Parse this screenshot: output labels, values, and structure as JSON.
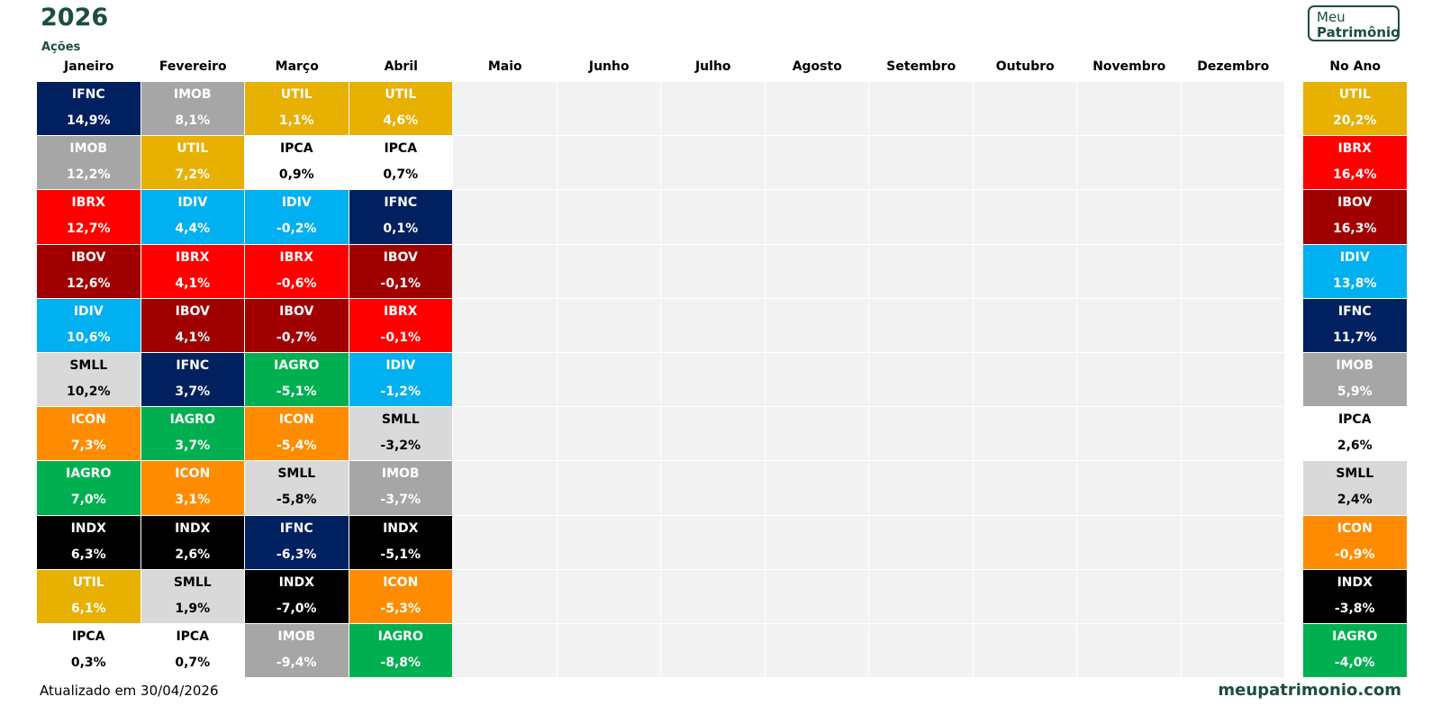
{
  "title": "2026",
  "subtitle": "Ações",
  "logo": [
    "Meu",
    "Patrimônio"
  ],
  "columns": [
    {
      "header": "Janeiro",
      "cells": [
        [
          "IFNC",
          "14,9%"
        ],
        [
          "IMOB",
          "12,2%"
        ],
        [
          "IBRX",
          "12,7%"
        ],
        [
          "IBOV",
          "12,6%"
        ],
        [
          "IDIV",
          "10,6%"
        ],
        [
          "SMLL",
          "10,2%"
        ],
        [
          "ICON",
          "7,3%"
        ],
        [
          "IAGRO",
          "7,0%"
        ],
        [
          "INDX",
          "6,3%"
        ],
        [
          "UTIL",
          "6,1%"
        ],
        [
          "IPCA",
          "0,3%"
        ]
      ]
    },
    {
      "header": "Fevereiro",
      "cells": [
        [
          "IMOB",
          "8,1%"
        ],
        [
          "UTIL",
          "7,2%"
        ],
        [
          "IDIV",
          "4,4%"
        ],
        [
          "IBRX",
          "4,1%"
        ],
        [
          "IBOV",
          "4,1%"
        ],
        [
          "IFNC",
          "3,7%"
        ],
        [
          "IAGRO",
          "3,7%"
        ],
        [
          "ICON",
          "3,1%"
        ],
        [
          "INDX",
          "2,6%"
        ],
        [
          "SMLL",
          "1,9%"
        ],
        [
          "IPCA",
          "0,7%"
        ]
      ]
    },
    {
      "header": "Março",
      "cells": [
        [
          "UTIL",
          "1,1%"
        ],
        [
          "IPCA",
          "0,9%"
        ],
        [
          "IDIV",
          "-0,2%"
        ],
        [
          "IBRX",
          "-0,6%"
        ],
        [
          "IBOV",
          "-0,7%"
        ],
        [
          "IAGRO",
          "-5,1%"
        ],
        [
          "ICON",
          "-5,4%"
        ],
        [
          "SMLL",
          "-5,8%"
        ],
        [
          "IFNC",
          "-6,3%"
        ],
        [
          "INDX",
          "-7,0%"
        ],
        [
          "IMOB",
          "-9,4%"
        ]
      ]
    },
    {
      "header": "Abril",
      "cells": [
        [
          "UTIL",
          "4,6%"
        ],
        [
          "IPCA",
          "0,7%"
        ],
        [
          "IFNC",
          "0,1%"
        ],
        [
          "IBOV",
          "-0,1%"
        ],
        [
          "IBRX",
          "-0,1%"
        ],
        [
          "IDIV",
          "-1,2%"
        ],
        [
          "SMLL",
          "-3,2%"
        ],
        [
          "IMOB",
          "-3,7%"
        ],
        [
          "INDX",
          "-5,1%"
        ],
        [
          "ICON",
          "-5,3%"
        ],
        [
          "IAGRO",
          "-8,8%"
        ]
      ]
    },
    {
      "header": "Maio",
      "cells": []
    },
    {
      "header": "Junho",
      "cells": []
    },
    {
      "header": "Julho",
      "cells": []
    },
    {
      "header": "Agosto",
      "cells": []
    },
    {
      "header": "Setembro",
      "cells": []
    },
    {
      "header": "Outubro",
      "cells": []
    },
    {
      "header": "Novembro",
      "cells": []
    },
    {
      "header": "Dezembro",
      "cells": []
    }
  ],
  "year_column": {
    "header": "No Ano",
    "cells": [
      [
        "UTIL",
        "20,2%"
      ],
      [
        "IBRX",
        "16,4%"
      ],
      [
        "IBOV",
        "16,3%"
      ],
      [
        "IDIV",
        "13,8%"
      ],
      [
        "IFNC",
        "11,7%"
      ],
      [
        "IMOB",
        "5,9%"
      ],
      [
        "IPCA",
        "2,6%"
      ],
      [
        "SMLL",
        "2,4%"
      ],
      [
        "ICON",
        "-0,9%"
      ],
      [
        "INDX",
        "-3,8%"
      ],
      [
        "IAGRO",
        "-4,0%"
      ]
    ]
  },
  "footer": {
    "updated": "Atualizado em 30/04/2026",
    "site": "meupatrimonio.com"
  }
}
